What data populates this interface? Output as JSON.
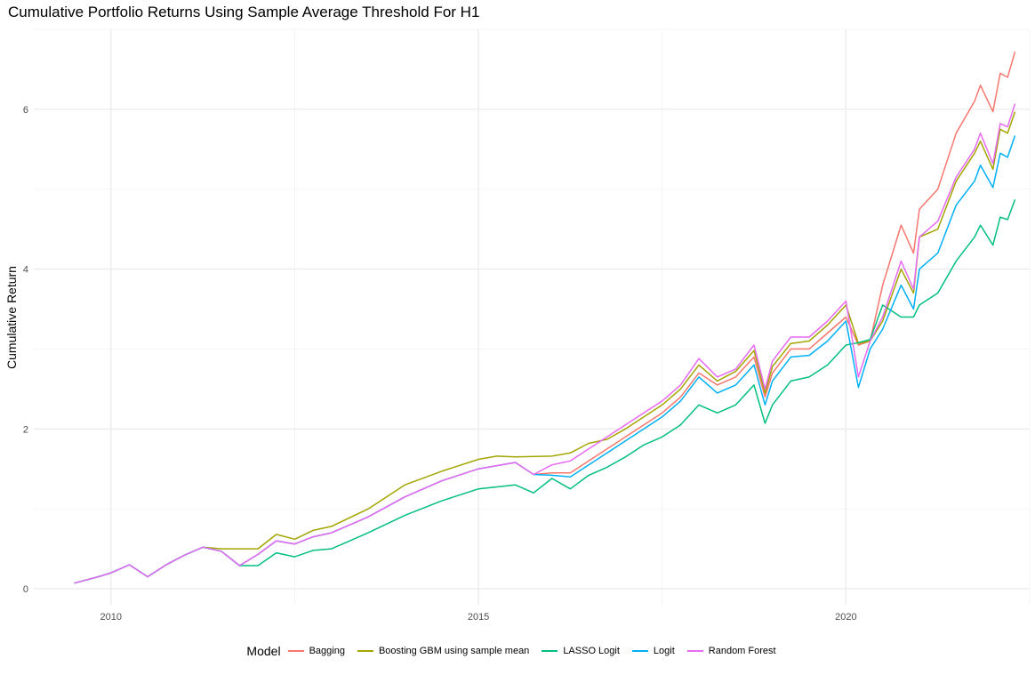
{
  "chart_data": {
    "type": "line",
    "title": "Cumulative Portfolio Returns Using Sample Average Threshold For H1",
    "xlabel": "",
    "ylabel": "Cumulative Return",
    "xlim": [
      2008.95,
      2022.5
    ],
    "ylim": [
      -0.2,
      7.0
    ],
    "x_ticks": [
      2010,
      2015,
      2020
    ],
    "y_ticks": [
      0,
      2,
      4,
      6
    ],
    "grid": true,
    "legend_title": "Model",
    "legend_position": "bottom",
    "series": [
      {
        "name": "Bagging",
        "color": "#F8766D",
        "points": [
          [
            2009.5,
            0.07
          ],
          [
            2009.83,
            0.15
          ],
          [
            2010.0,
            0.2
          ],
          [
            2010.25,
            0.3
          ],
          [
            2010.5,
            0.15
          ],
          [
            2010.75,
            0.3
          ],
          [
            2011.0,
            0.42
          ],
          [
            2011.25,
            0.52
          ],
          [
            2011.5,
            0.47
          ],
          [
            2011.75,
            0.29
          ],
          [
            2012.0,
            0.43
          ],
          [
            2012.25,
            0.6
          ],
          [
            2012.5,
            0.56
          ],
          [
            2012.75,
            0.65
          ],
          [
            2013.0,
            0.7
          ],
          [
            2013.5,
            0.9
          ],
          [
            2014.0,
            1.15
          ],
          [
            2014.5,
            1.35
          ],
          [
            2015.0,
            1.5
          ],
          [
            2015.5,
            1.58
          ],
          [
            2015.75,
            1.43
          ],
          [
            2016.0,
            1.45
          ],
          [
            2016.25,
            1.45
          ],
          [
            2016.5,
            1.6
          ],
          [
            2016.75,
            1.75
          ],
          [
            2017.0,
            1.9
          ],
          [
            2017.25,
            2.05
          ],
          [
            2017.5,
            2.2
          ],
          [
            2017.75,
            2.4
          ],
          [
            2018.0,
            2.7
          ],
          [
            2018.25,
            2.55
          ],
          [
            2018.5,
            2.65
          ],
          [
            2018.75,
            2.9
          ],
          [
            2018.9,
            2.4
          ],
          [
            2019.0,
            2.7
          ],
          [
            2019.25,
            3.0
          ],
          [
            2019.5,
            3.0
          ],
          [
            2019.75,
            3.2
          ],
          [
            2020.0,
            3.4
          ],
          [
            2020.17,
            3.05
          ],
          [
            2020.33,
            3.1
          ],
          [
            2020.5,
            3.8
          ],
          [
            2020.75,
            4.55
          ],
          [
            2020.92,
            4.2
          ],
          [
            2021.0,
            4.75
          ],
          [
            2021.25,
            5.0
          ],
          [
            2021.5,
            5.7
          ],
          [
            2021.75,
            6.1
          ],
          [
            2021.83,
            6.3
          ],
          [
            2022.0,
            5.97
          ],
          [
            2022.1,
            6.45
          ],
          [
            2022.2,
            6.4
          ],
          [
            2022.3,
            6.72
          ]
        ]
      },
      {
        "name": "Boosting GBM using sample mean",
        "color": "#A3A500",
        "points": [
          [
            2009.5,
            0.07
          ],
          [
            2009.83,
            0.15
          ],
          [
            2010.0,
            0.2
          ],
          [
            2010.25,
            0.3
          ],
          [
            2010.5,
            0.15
          ],
          [
            2010.75,
            0.3
          ],
          [
            2011.0,
            0.42
          ],
          [
            2011.25,
            0.52
          ],
          [
            2011.5,
            0.5
          ],
          [
            2011.75,
            0.5
          ],
          [
            2012.0,
            0.5
          ],
          [
            2012.25,
            0.68
          ],
          [
            2012.5,
            0.62
          ],
          [
            2012.75,
            0.73
          ],
          [
            2013.0,
            0.78
          ],
          [
            2013.5,
            1.0
          ],
          [
            2014.0,
            1.3
          ],
          [
            2014.5,
            1.47
          ],
          [
            2015.0,
            1.62
          ],
          [
            2015.25,
            1.66
          ],
          [
            2015.5,
            1.65
          ],
          [
            2016.0,
            1.66
          ],
          [
            2016.25,
            1.7
          ],
          [
            2016.5,
            1.82
          ],
          [
            2016.75,
            1.87
          ],
          [
            2017.0,
            2.0
          ],
          [
            2017.25,
            2.15
          ],
          [
            2017.5,
            2.3
          ],
          [
            2017.75,
            2.5
          ],
          [
            2018.0,
            2.8
          ],
          [
            2018.25,
            2.6
          ],
          [
            2018.5,
            2.72
          ],
          [
            2018.75,
            2.98
          ],
          [
            2018.9,
            2.45
          ],
          [
            2019.0,
            2.78
          ],
          [
            2019.25,
            3.07
          ],
          [
            2019.5,
            3.1
          ],
          [
            2019.75,
            3.3
          ],
          [
            2020.0,
            3.55
          ],
          [
            2020.17,
            3.07
          ],
          [
            2020.33,
            3.1
          ],
          [
            2020.5,
            3.35
          ],
          [
            2020.75,
            4.0
          ],
          [
            2020.92,
            3.7
          ],
          [
            2021.0,
            4.4
          ],
          [
            2021.25,
            4.5
          ],
          [
            2021.5,
            5.1
          ],
          [
            2021.75,
            5.45
          ],
          [
            2021.83,
            5.6
          ],
          [
            2022.0,
            5.25
          ],
          [
            2022.1,
            5.75
          ],
          [
            2022.2,
            5.7
          ],
          [
            2022.3,
            5.97
          ]
        ]
      },
      {
        "name": "LASSO Logit",
        "color": "#00BF7D",
        "points": [
          [
            2009.5,
            0.07
          ],
          [
            2009.83,
            0.15
          ],
          [
            2010.0,
            0.2
          ],
          [
            2010.25,
            0.3
          ],
          [
            2010.5,
            0.15
          ],
          [
            2010.75,
            0.3
          ],
          [
            2011.0,
            0.42
          ],
          [
            2011.25,
            0.52
          ],
          [
            2011.5,
            0.47
          ],
          [
            2011.75,
            0.29
          ],
          [
            2012.0,
            0.29
          ],
          [
            2012.25,
            0.45
          ],
          [
            2012.5,
            0.4
          ],
          [
            2012.75,
            0.48
          ],
          [
            2013.0,
            0.5
          ],
          [
            2013.5,
            0.7
          ],
          [
            2014.0,
            0.92
          ],
          [
            2014.5,
            1.1
          ],
          [
            2015.0,
            1.25
          ],
          [
            2015.5,
            1.3
          ],
          [
            2015.75,
            1.2
          ],
          [
            2016.0,
            1.38
          ],
          [
            2016.25,
            1.25
          ],
          [
            2016.5,
            1.42
          ],
          [
            2016.75,
            1.52
          ],
          [
            2017.0,
            1.65
          ],
          [
            2017.25,
            1.8
          ],
          [
            2017.5,
            1.9
          ],
          [
            2017.75,
            2.05
          ],
          [
            2018.0,
            2.3
          ],
          [
            2018.25,
            2.2
          ],
          [
            2018.5,
            2.3
          ],
          [
            2018.75,
            2.55
          ],
          [
            2018.9,
            2.07
          ],
          [
            2019.0,
            2.3
          ],
          [
            2019.25,
            2.6
          ],
          [
            2019.5,
            2.65
          ],
          [
            2019.75,
            2.8
          ],
          [
            2020.0,
            3.05
          ],
          [
            2020.17,
            3.08
          ],
          [
            2020.33,
            3.12
          ],
          [
            2020.5,
            3.55
          ],
          [
            2020.75,
            3.4
          ],
          [
            2020.92,
            3.4
          ],
          [
            2021.0,
            3.55
          ],
          [
            2021.25,
            3.7
          ],
          [
            2021.5,
            4.1
          ],
          [
            2021.75,
            4.4
          ],
          [
            2021.83,
            4.55
          ],
          [
            2022.0,
            4.3
          ],
          [
            2022.1,
            4.65
          ],
          [
            2022.2,
            4.62
          ],
          [
            2022.3,
            4.87
          ]
        ]
      },
      {
        "name": "Logit",
        "color": "#00B0F6",
        "points": [
          [
            2009.5,
            0.07
          ],
          [
            2009.83,
            0.15
          ],
          [
            2010.0,
            0.2
          ],
          [
            2010.25,
            0.3
          ],
          [
            2010.5,
            0.15
          ],
          [
            2010.75,
            0.3
          ],
          [
            2011.0,
            0.42
          ],
          [
            2011.25,
            0.52
          ],
          [
            2011.5,
            0.47
          ],
          [
            2011.75,
            0.29
          ],
          [
            2012.0,
            0.43
          ],
          [
            2012.25,
            0.6
          ],
          [
            2012.5,
            0.56
          ],
          [
            2012.75,
            0.65
          ],
          [
            2013.0,
            0.7
          ],
          [
            2013.5,
            0.9
          ],
          [
            2014.0,
            1.15
          ],
          [
            2014.5,
            1.35
          ],
          [
            2015.0,
            1.5
          ],
          [
            2015.5,
            1.58
          ],
          [
            2015.75,
            1.43
          ],
          [
            2016.0,
            1.42
          ],
          [
            2016.25,
            1.4
          ],
          [
            2016.5,
            1.55
          ],
          [
            2016.75,
            1.7
          ],
          [
            2017.0,
            1.85
          ],
          [
            2017.25,
            2.0
          ],
          [
            2017.5,
            2.15
          ],
          [
            2017.75,
            2.35
          ],
          [
            2018.0,
            2.65
          ],
          [
            2018.25,
            2.45
          ],
          [
            2018.5,
            2.55
          ],
          [
            2018.75,
            2.8
          ],
          [
            2018.9,
            2.3
          ],
          [
            2019.0,
            2.6
          ],
          [
            2019.25,
            2.9
          ],
          [
            2019.5,
            2.92
          ],
          [
            2019.75,
            3.1
          ],
          [
            2020.0,
            3.35
          ],
          [
            2020.17,
            2.52
          ],
          [
            2020.33,
            3.0
          ],
          [
            2020.5,
            3.25
          ],
          [
            2020.75,
            3.8
          ],
          [
            2020.92,
            3.5
          ],
          [
            2021.0,
            4.0
          ],
          [
            2021.25,
            4.2
          ],
          [
            2021.5,
            4.8
          ],
          [
            2021.75,
            5.1
          ],
          [
            2021.83,
            5.3
          ],
          [
            2022.0,
            5.02
          ],
          [
            2022.1,
            5.45
          ],
          [
            2022.2,
            5.4
          ],
          [
            2022.3,
            5.67
          ]
        ]
      },
      {
        "name": "Random Forest",
        "color": "#E76BF3",
        "points": [
          [
            2009.5,
            0.07
          ],
          [
            2009.83,
            0.15
          ],
          [
            2010.0,
            0.2
          ],
          [
            2010.25,
            0.3
          ],
          [
            2010.5,
            0.15
          ],
          [
            2010.75,
            0.3
          ],
          [
            2011.0,
            0.42
          ],
          [
            2011.25,
            0.52
          ],
          [
            2011.5,
            0.47
          ],
          [
            2011.75,
            0.29
          ],
          [
            2012.0,
            0.43
          ],
          [
            2012.25,
            0.6
          ],
          [
            2012.5,
            0.56
          ],
          [
            2012.75,
            0.65
          ],
          [
            2013.0,
            0.7
          ],
          [
            2013.5,
            0.9
          ],
          [
            2014.0,
            1.15
          ],
          [
            2014.5,
            1.35
          ],
          [
            2015.0,
            1.5
          ],
          [
            2015.5,
            1.58
          ],
          [
            2015.75,
            1.43
          ],
          [
            2016.0,
            1.55
          ],
          [
            2016.25,
            1.6
          ],
          [
            2016.5,
            1.75
          ],
          [
            2016.75,
            1.9
          ],
          [
            2017.0,
            2.05
          ],
          [
            2017.25,
            2.2
          ],
          [
            2017.5,
            2.35
          ],
          [
            2017.75,
            2.55
          ],
          [
            2018.0,
            2.88
          ],
          [
            2018.25,
            2.65
          ],
          [
            2018.5,
            2.75
          ],
          [
            2018.75,
            3.05
          ],
          [
            2018.9,
            2.5
          ],
          [
            2019.0,
            2.85
          ],
          [
            2019.25,
            3.15
          ],
          [
            2019.5,
            3.15
          ],
          [
            2019.75,
            3.35
          ],
          [
            2020.0,
            3.6
          ],
          [
            2020.17,
            2.65
          ],
          [
            2020.33,
            3.1
          ],
          [
            2020.5,
            3.4
          ],
          [
            2020.75,
            4.1
          ],
          [
            2020.92,
            3.75
          ],
          [
            2021.0,
            4.4
          ],
          [
            2021.25,
            4.6
          ],
          [
            2021.5,
            5.15
          ],
          [
            2021.75,
            5.5
          ],
          [
            2021.83,
            5.7
          ],
          [
            2022.0,
            5.32
          ],
          [
            2022.1,
            5.82
          ],
          [
            2022.2,
            5.78
          ],
          [
            2022.3,
            6.07
          ]
        ]
      }
    ]
  }
}
